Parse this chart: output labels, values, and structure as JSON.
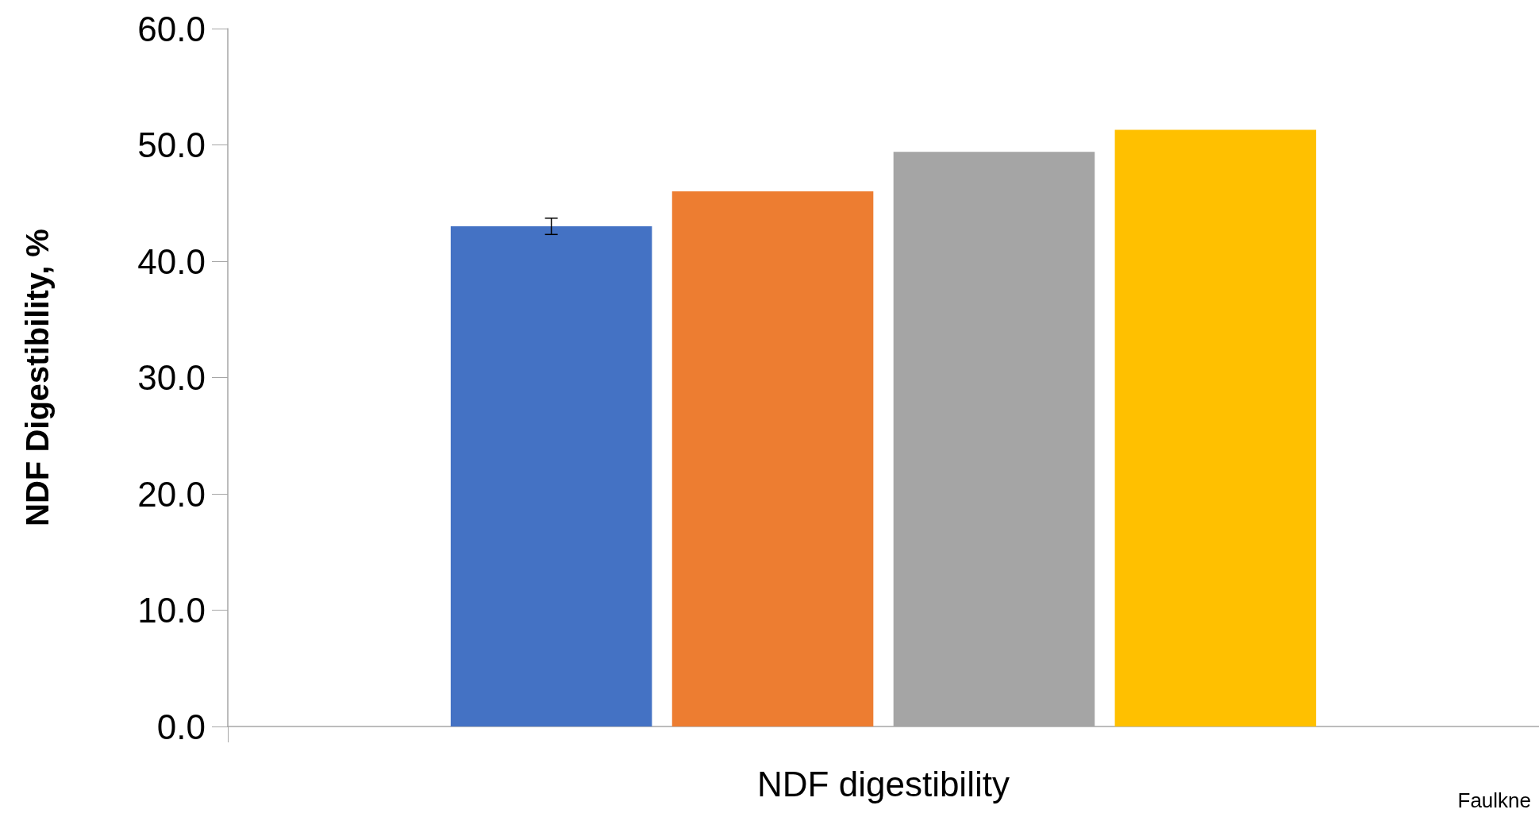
{
  "chart_data": {
    "type": "bar",
    "categories": [
      "NDF digestibility"
    ],
    "ylabel": "NDF Digestibility, %",
    "series": [
      {
        "color": "#4472c4",
        "values": [
          43.0
        ],
        "errors": [
          0.7
        ]
      },
      {
        "color": "#ed7d31",
        "values": [
          46.0
        ]
      },
      {
        "color": "#a5a5a5",
        "values": [
          49.4
        ]
      },
      {
        "color": "#ffc000",
        "values": [
          51.3
        ]
      }
    ],
    "ylim": [
      0,
      60
    ],
    "yticks": [
      {
        "value": 0,
        "label": "0.0"
      },
      {
        "value": 10,
        "label": "10.0"
      },
      {
        "value": 20,
        "label": "20.0"
      },
      {
        "value": 30,
        "label": "30.0"
      },
      {
        "value": 40,
        "label": "40.0"
      },
      {
        "value": 50,
        "label": "50.0"
      },
      {
        "value": 60,
        "label": "60.0"
      }
    ],
    "grid": false,
    "annotations": [
      "Faulkne"
    ]
  }
}
